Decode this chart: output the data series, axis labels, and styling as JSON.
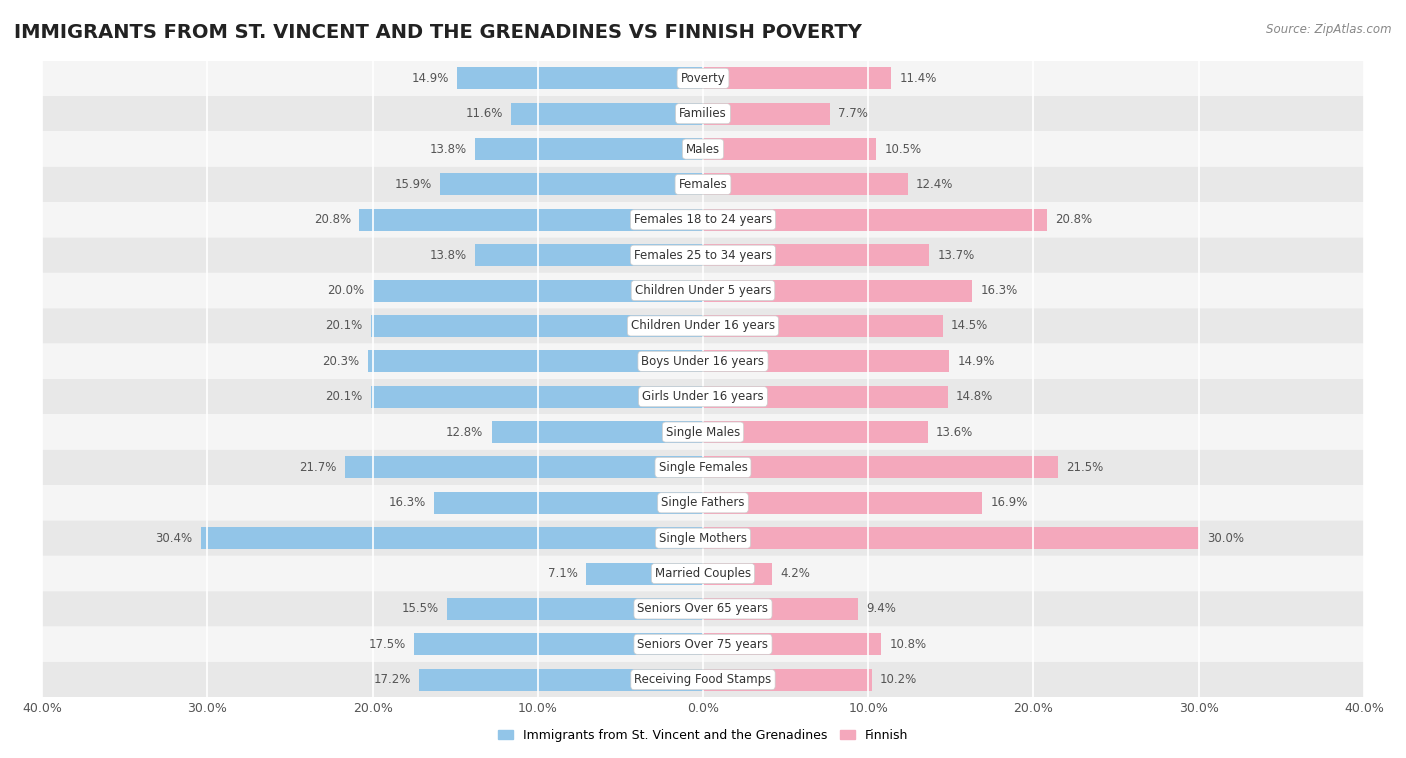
{
  "title": "IMMIGRANTS FROM ST. VINCENT AND THE GRENADINES VS FINNISH POVERTY",
  "source": "Source: ZipAtlas.com",
  "categories": [
    "Poverty",
    "Families",
    "Males",
    "Females",
    "Females 18 to 24 years",
    "Females 25 to 34 years",
    "Children Under 5 years",
    "Children Under 16 years",
    "Boys Under 16 years",
    "Girls Under 16 years",
    "Single Males",
    "Single Females",
    "Single Fathers",
    "Single Mothers",
    "Married Couples",
    "Seniors Over 65 years",
    "Seniors Over 75 years",
    "Receiving Food Stamps"
  ],
  "left_values": [
    14.9,
    11.6,
    13.8,
    15.9,
    20.8,
    13.8,
    20.0,
    20.1,
    20.3,
    20.1,
    12.8,
    21.7,
    16.3,
    30.4,
    7.1,
    15.5,
    17.5,
    17.2
  ],
  "right_values": [
    11.4,
    7.7,
    10.5,
    12.4,
    20.8,
    13.7,
    16.3,
    14.5,
    14.9,
    14.8,
    13.6,
    21.5,
    16.9,
    30.0,
    4.2,
    9.4,
    10.8,
    10.2
  ],
  "left_color": "#92C5E8",
  "right_color": "#F4A8BC",
  "bg_color": "#ffffff",
  "row_bg_odd": "#f5f5f5",
  "row_bg_even": "#e8e8e8",
  "axis_max": 40.0,
  "legend_left": "Immigrants from St. Vincent and the Grenadines",
  "legend_right": "Finnish",
  "title_fontsize": 14,
  "label_fontsize": 8.5,
  "value_fontsize": 8.5,
  "tick_fontsize": 9
}
